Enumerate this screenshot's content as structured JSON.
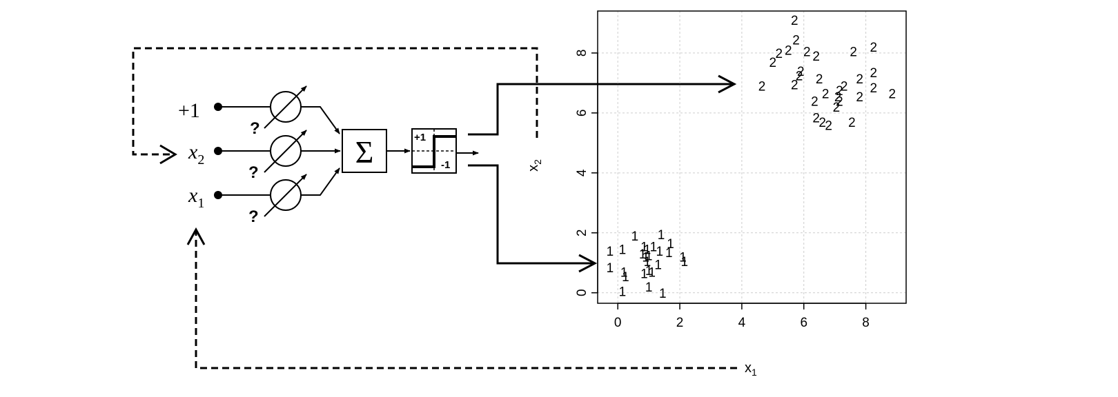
{
  "perceptron": {
    "inputs": [
      {
        "label": "+1",
        "sub": ""
      },
      {
        "label": "x",
        "sub": "2"
      },
      {
        "label": "x",
        "sub": "1"
      }
    ],
    "weight_mark": "?",
    "summation_symbol": "Σ",
    "step_high_label": "+1",
    "step_low_label": "-1"
  },
  "chart_data": {
    "type": "scatter",
    "title": "",
    "xlabel": "x",
    "xlabel_sub": "1",
    "ylabel": "x",
    "ylabel_sub": "2",
    "xlim": [
      -0.65,
      9.3
    ],
    "ylim": [
      -0.35,
      9.4
    ],
    "xticks": [
      "0",
      "2",
      "4",
      "6",
      "8"
    ],
    "yticks": [
      "0",
      "2",
      "4",
      "6",
      "8"
    ],
    "grid": true,
    "series": [
      {
        "label": "1",
        "points": [
          [
            -0.25,
            1.4
          ],
          [
            0.15,
            1.45
          ],
          [
            0.55,
            1.9
          ],
          [
            0.85,
            1.55
          ],
          [
            0.95,
            1.45
          ],
          [
            1.15,
            1.55
          ],
          [
            1.4,
            1.95
          ],
          [
            1.7,
            1.65
          ],
          [
            1.35,
            1.4
          ],
          [
            1.65,
            1.35
          ],
          [
            2.1,
            1.2
          ],
          [
            2.15,
            1.05
          ],
          [
            0.8,
            1.3
          ],
          [
            0.9,
            1.2
          ],
          [
            1.0,
            1.25
          ],
          [
            0.95,
            1.05
          ],
          [
            1.3,
            0.95
          ],
          [
            0.85,
            0.65
          ],
          [
            1.0,
            0.75
          ],
          [
            1.1,
            0.7
          ],
          [
            -0.25,
            0.85
          ],
          [
            0.2,
            0.7
          ],
          [
            0.25,
            0.55
          ],
          [
            0.15,
            0.05
          ],
          [
            1.0,
            0.2
          ],
          [
            1.45,
            0.0
          ]
        ]
      },
      {
        "label": "2",
        "points": [
          [
            5.7,
            9.1
          ],
          [
            5.75,
            8.45
          ],
          [
            5.5,
            8.1
          ],
          [
            5.2,
            8.0
          ],
          [
            5.0,
            7.7
          ],
          [
            6.1,
            8.05
          ],
          [
            6.4,
            7.9
          ],
          [
            7.6,
            8.05
          ],
          [
            8.25,
            8.2
          ],
          [
            5.9,
            7.4
          ],
          [
            5.85,
            7.25
          ],
          [
            6.5,
            7.15
          ],
          [
            7.3,
            6.9
          ],
          [
            7.8,
            7.15
          ],
          [
            8.25,
            7.35
          ],
          [
            4.65,
            6.9
          ],
          [
            5.7,
            6.95
          ],
          [
            6.7,
            6.65
          ],
          [
            7.15,
            6.75
          ],
          [
            7.1,
            6.55
          ],
          [
            7.15,
            6.4
          ],
          [
            8.25,
            6.85
          ],
          [
            7.8,
            6.55
          ],
          [
            8.85,
            6.65
          ],
          [
            6.35,
            6.4
          ],
          [
            7.05,
            6.2
          ],
          [
            6.4,
            5.85
          ],
          [
            6.6,
            5.7
          ],
          [
            6.8,
            5.6
          ],
          [
            7.55,
            5.7
          ]
        ]
      }
    ]
  }
}
